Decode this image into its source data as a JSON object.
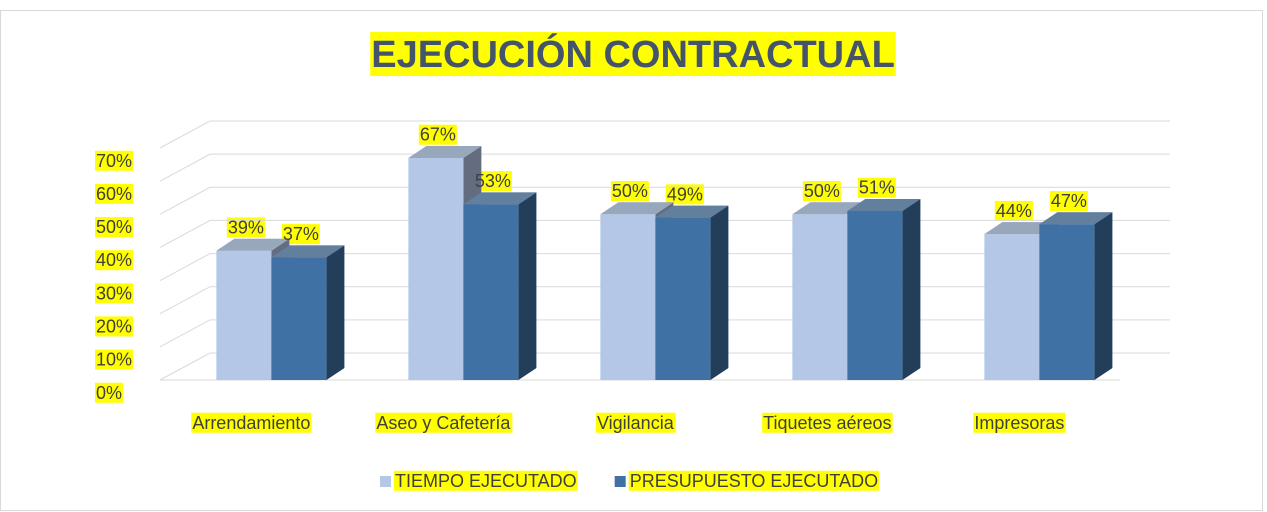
{
  "chart_data": {
    "type": "bar3d",
    "title": "EJECUCIÓN CONTRACTUAL",
    "categories": [
      "Arrendamiento",
      "Aseo y Cafetería",
      "Vigilancia",
      "Tiquetes aéreos",
      "Impresoras"
    ],
    "series": [
      {
        "name": "TIEMPO EJECUTADO",
        "color": "#b4c7e7",
        "values": [
          39,
          67,
          50,
          50,
          44
        ],
        "value_labels": [
          "39%",
          "67%",
          "50%",
          "50%",
          "44%"
        ]
      },
      {
        "name": "PRESUPUESTO EJECUTADO",
        "color": "#3f71a5",
        "values": [
          37,
          53,
          49,
          51,
          47
        ],
        "value_labels": [
          "37%",
          "53%",
          "49%",
          "51%",
          "47%"
        ]
      }
    ],
    "ylim": [
      0,
      70
    ],
    "yticks": [
      {
        "value": 0,
        "label": "0%"
      },
      {
        "value": 10,
        "label": "10%"
      },
      {
        "value": 20,
        "label": "20%"
      },
      {
        "value": 30,
        "label": "30%"
      },
      {
        "value": 40,
        "label": "40%"
      },
      {
        "value": 50,
        "label": "50%"
      },
      {
        "value": 60,
        "label": "60%"
      },
      {
        "value": 70,
        "label": "70%"
      }
    ],
    "grid": true,
    "legend": "bottom",
    "highlight": "#ffff00"
  }
}
